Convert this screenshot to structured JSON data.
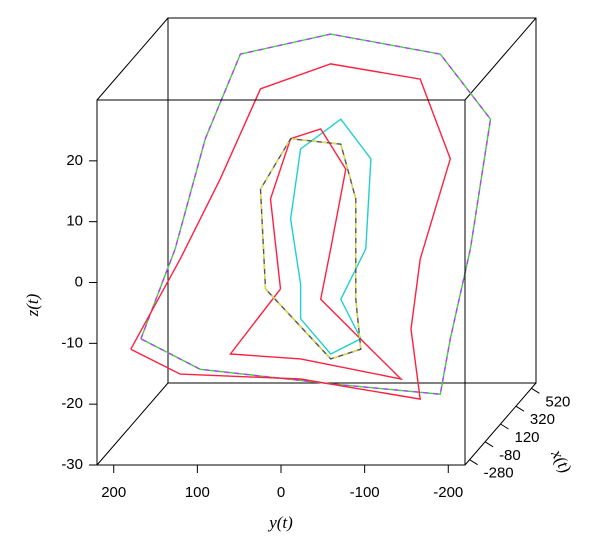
{
  "chart_data": {
    "type": "line3d",
    "xlabel": "x(t)",
    "ylabel": "y(t)",
    "zlabel": "z(t)",
    "xlim": [
      -340,
      580
    ],
    "ylim": [
      220,
      -220
    ],
    "zlim": [
      -30,
      30
    ],
    "xticks": [
      -280,
      -80,
      120,
      320,
      520
    ],
    "yticks": [
      200,
      100,
      0,
      -100,
      -200
    ],
    "zticks": [
      -30,
      -20,
      -10,
      0,
      10,
      20
    ],
    "series": [
      {
        "color": "#40d040",
        "dash_color": "#b040ff",
        "depth": 120,
        "y": [
          210,
          169,
          133,
          91,
          -17,
          -148,
          -208,
          -184,
          -160,
          -148,
          -17,
          139,
          210
        ],
        "z": [
          -16.0,
          -1.2,
          16.9,
          30.8,
          34.1,
          30.8,
          20.1,
          -1.2,
          -16.0,
          -25.1,
          -23.4,
          -21.0,
          -16.0
        ]
      },
      {
        "color": "#ff2040",
        "depth": 120,
        "y": [
          222,
          163,
          115,
          67,
          -17,
          -124,
          -160,
          -124,
          -113,
          -124,
          19,
          163,
          222
        ],
        "z": [
          -17.7,
          -2.9,
          10.3,
          25.1,
          29.2,
          26.7,
          13.6,
          -2.9,
          -14.4,
          -25.9,
          -22.6,
          -21.8,
          -17.7
        ]
      },
      {
        "color": "#20d0d0",
        "depth": 120,
        "y": [
          19,
          31,
          19,
          -29,
          -65,
          -59,
          -29,
          -53,
          -17,
          19,
          19
        ],
        "z": [
          -7.0,
          3.7,
          15.2,
          20.1,
          13.6,
          -1.2,
          -9.5,
          -16.0,
          -18.5,
          -12.7,
          -7.0
        ]
      },
      {
        "color": "#ff2040",
        "depth": 120,
        "y": [
          43,
          55,
          31,
          -5,
          -35,
          -17,
          -5,
          -65,
          -101,
          19,
          103,
          43
        ],
        "z": [
          -7.8,
          7.0,
          16.9,
          18.5,
          11.9,
          -1.2,
          -9.5,
          -17.7,
          -22.6,
          -19.3,
          -18.5,
          -7.8
        ]
      },
      {
        "color": "#555555",
        "dash_color": "#e0e040",
        "depth": 120,
        "y": [
          61,
          67,
          31,
          -29,
          -47,
          -47,
          -53,
          -17,
          61
        ],
        "z": [
          -7.8,
          8.6,
          16.9,
          16.0,
          7.0,
          -9.5,
          -17.7,
          -19.3,
          -7.8
        ]
      }
    ]
  }
}
